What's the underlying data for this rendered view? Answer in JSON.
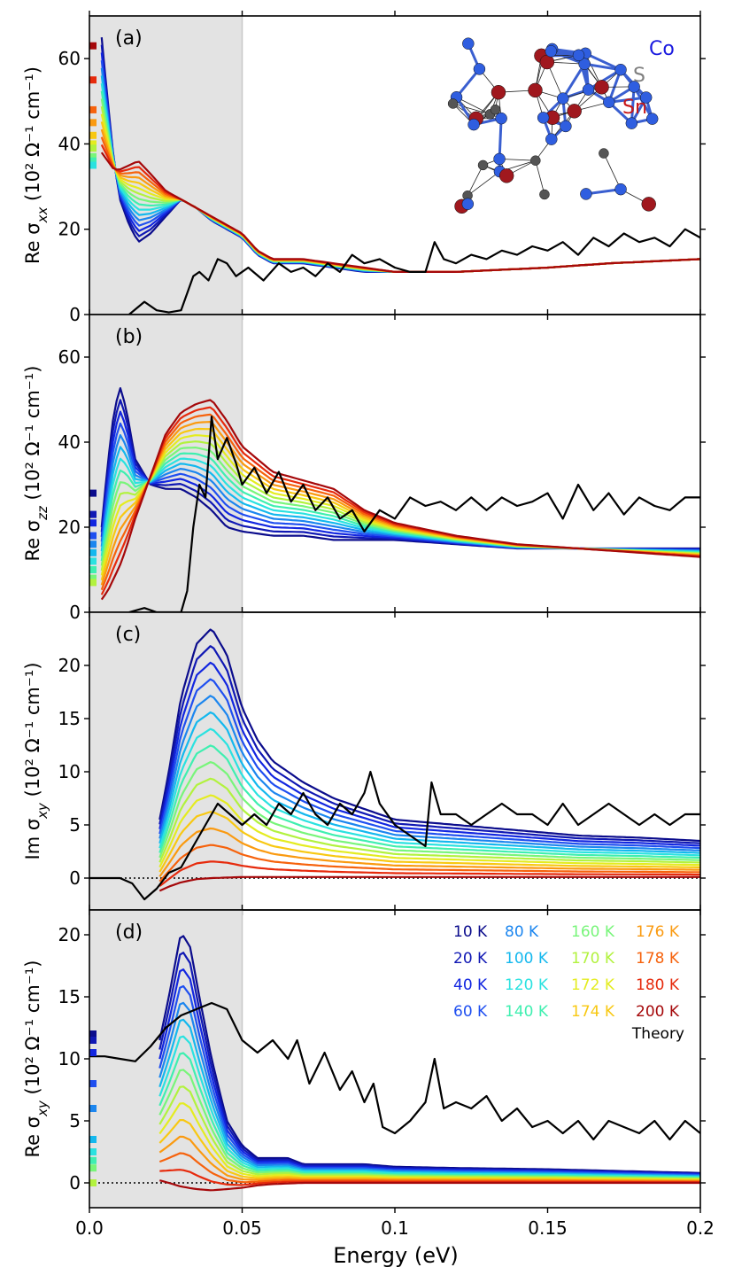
{
  "figure": {
    "xlabel": "Energy (eV)",
    "xlim": [
      0,
      0.2
    ],
    "xticks": [
      0.0,
      0.05,
      0.1,
      0.15,
      0.2
    ],
    "xtick_labels": [
      "0.0",
      "0.05",
      "0.1",
      "0.15",
      "0.2"
    ],
    "shaded_region_ev": [
      0,
      0.05
    ],
    "shade_color": "#e3e3e3",
    "crystal_labels": [
      {
        "text": "Co",
        "color": "#1a1adf"
      },
      {
        "text": "S",
        "color": "#7f7f7f"
      },
      {
        "text": "Sn",
        "color": "#c81818"
      }
    ]
  },
  "legend": {
    "entries": [
      {
        "label": "10 K",
        "color": "#0b0c8c"
      },
      {
        "label": "20 K",
        "color": "#1018b4"
      },
      {
        "label": "40 K",
        "color": "#1226e0"
      },
      {
        "label": "60 K",
        "color": "#1f4ff0"
      },
      {
        "label": "80 K",
        "color": "#1c86ef"
      },
      {
        "label": "100 K",
        "color": "#14b8ee"
      },
      {
        "label": "120 K",
        "color": "#2ae2e0"
      },
      {
        "label": "140 K",
        "color": "#3fefb0"
      },
      {
        "label": "160 K",
        "color": "#78f57a"
      },
      {
        "label": "170 K",
        "color": "#b2f23e"
      },
      {
        "label": "172 K",
        "color": "#e4ec20"
      },
      {
        "label": "174 K",
        "color": "#f8c812"
      },
      {
        "label": "176 K",
        "color": "#fa9a10"
      },
      {
        "label": "178 K",
        "color": "#f6620c"
      },
      {
        "label": "180 K",
        "color": "#e62a0c"
      },
      {
        "label": "200 K",
        "color": "#a5080a"
      }
    ],
    "theory": {
      "label": "Theory",
      "color": "#000000"
    }
  },
  "chart_data": [
    {
      "type": "line",
      "panel": "(a)",
      "ylabel": "Re σxx (10² Ω⁻¹ cm⁻¹)",
      "ylabel_main": "Re σ",
      "ylabel_sub": "xx",
      "ylabel_unit": " (10² Ω⁻¹ cm⁻¹)",
      "ylim": [
        0,
        70
      ],
      "yticks": [
        0,
        20,
        40,
        60
      ],
      "ytick_labels": [
        "0",
        "20",
        "40",
        "60"
      ],
      "dc_markers": [
        63,
        55,
        48,
        45,
        42,
        40,
        39,
        37,
        36,
        35
      ],
      "theory": {
        "x": [
          0.013,
          0.018,
          0.022,
          0.026,
          0.03,
          0.034,
          0.036,
          0.039,
          0.042,
          0.045,
          0.048,
          0.052,
          0.057,
          0.062,
          0.066,
          0.07,
          0.074,
          0.078,
          0.082,
          0.086,
          0.09,
          0.095,
          0.1,
          0.105,
          0.11,
          0.113,
          0.116,
          0.12,
          0.125,
          0.13,
          0.135,
          0.14,
          0.145,
          0.15,
          0.155,
          0.16,
          0.165,
          0.17,
          0.175,
          0.18,
          0.185,
          0.19,
          0.195,
          0.2
        ],
        "y": [
          0,
          3,
          1,
          0.5,
          1,
          9,
          10,
          8,
          13,
          12,
          9,
          11,
          8,
          12,
          10,
          11,
          9,
          12,
          10,
          14,
          12,
          13,
          11,
          10,
          10,
          17,
          13,
          12,
          14,
          13,
          15,
          14,
          16,
          15,
          17,
          14,
          18,
          16,
          19,
          17,
          18,
          16,
          20,
          18
        ]
      },
      "series_hi": {
        "x": [
          0.004,
          0.006,
          0.008,
          0.01,
          0.013,
          0.016,
          0.02,
          0.025,
          0.03,
          0.035,
          0.04,
          0.045,
          0.05,
          0.055,
          0.06,
          0.07,
          0.08,
          0.09,
          0.1,
          0.12,
          0.15,
          0.17,
          0.2
        ],
        "y": [
          65,
          50,
          36,
          27,
          21,
          17,
          19,
          23,
          27,
          25,
          22,
          20,
          18,
          14,
          12,
          12,
          11,
          10,
          10,
          10,
          11,
          12,
          13
        ]
      },
      "series_lo": {
        "x": [
          0.004,
          0.006,
          0.008,
          0.01,
          0.013,
          0.016,
          0.02,
          0.025,
          0.03,
          0.035,
          0.04,
          0.045,
          0.05,
          0.055,
          0.06,
          0.07,
          0.08,
          0.09,
          0.1,
          0.12,
          0.15,
          0.17,
          0.2
        ],
        "y": [
          38,
          36,
          34,
          34,
          35,
          36,
          33,
          29,
          27,
          25,
          23,
          21,
          19,
          15,
          13,
          13,
          12,
          11,
          10,
          10,
          11,
          12,
          13
        ]
      }
    },
    {
      "type": "line",
      "panel": "(b)",
      "ylabel": "Re σzz (10² Ω⁻¹ cm⁻¹)",
      "ylabel_main": "Re σ",
      "ylabel_sub": "zz",
      "ylabel_unit": " (10² Ω⁻¹ cm⁻¹)",
      "ylim": [
        0,
        70
      ],
      "yticks": [
        0,
        20,
        40,
        60
      ],
      "ytick_labels": [
        "0",
        "20",
        "40",
        "60"
      ],
      "dc_markers": [
        28,
        23,
        21,
        18,
        16,
        14,
        12,
        10,
        8,
        7
      ],
      "theory": {
        "x": [
          0.013,
          0.018,
          0.022,
          0.03,
          0.032,
          0.034,
          0.036,
          0.038,
          0.04,
          0.042,
          0.045,
          0.048,
          0.05,
          0.054,
          0.058,
          0.062,
          0.066,
          0.07,
          0.074,
          0.078,
          0.082,
          0.086,
          0.09,
          0.095,
          0.1,
          0.105,
          0.11,
          0.115,
          0.12,
          0.125,
          0.13,
          0.135,
          0.14,
          0.145,
          0.15,
          0.155,
          0.16,
          0.165,
          0.17,
          0.175,
          0.18,
          0.185,
          0.19,
          0.195,
          0.2
        ],
        "y": [
          0,
          1,
          0,
          0,
          5,
          20,
          30,
          27,
          46,
          36,
          41,
          35,
          30,
          34,
          28,
          33,
          26,
          30,
          24,
          27,
          22,
          24,
          19,
          24,
          22,
          27,
          25,
          26,
          24,
          27,
          24,
          27,
          25,
          26,
          28,
          22,
          30,
          24,
          28,
          23,
          27,
          25,
          24,
          27,
          27
        ]
      },
      "series_hi": {
        "x": [
          0.004,
          0.006,
          0.008,
          0.01,
          0.012,
          0.015,
          0.02,
          0.025,
          0.03,
          0.035,
          0.04,
          0.045,
          0.05,
          0.06,
          0.07,
          0.08,
          0.09,
          0.1,
          0.12,
          0.14,
          0.16,
          0.18,
          0.2
        ],
        "y": [
          20,
          35,
          47,
          53,
          48,
          36,
          30,
          29,
          29,
          27,
          24,
          20,
          19,
          18,
          18,
          17,
          17,
          17,
          16,
          15,
          15,
          15,
          15
        ]
      },
      "series_lo": {
        "x": [
          0.004,
          0.006,
          0.008,
          0.01,
          0.012,
          0.015,
          0.02,
          0.025,
          0.03,
          0.035,
          0.04,
          0.045,
          0.05,
          0.06,
          0.07,
          0.08,
          0.09,
          0.1,
          0.12,
          0.14,
          0.16,
          0.18,
          0.2
        ],
        "y": [
          3,
          5,
          8,
          11,
          15,
          22,
          32,
          42,
          47,
          49,
          50,
          45,
          39,
          33,
          31,
          29,
          24,
          21,
          18,
          16,
          15,
          14,
          13
        ]
      }
    },
    {
      "type": "line",
      "panel": "(c)",
      "ylabel": "Im σxy (10² Ω⁻¹ cm⁻¹)",
      "ylabel_main": "Im σ",
      "ylabel_sub": "xy",
      "ylabel_unit": " (10² Ω⁻¹ cm⁻¹)",
      "ylim": [
        -3,
        25
      ],
      "yticks": [
        0,
        5,
        10,
        15,
        20
      ],
      "ytick_labels": [
        "0",
        "5",
        "10",
        "15",
        "20"
      ],
      "dc_markers": [],
      "zero_line": true,
      "theory": {
        "x": [
          0,
          0.01,
          0.014,
          0.018,
          0.022,
          0.026,
          0.03,
          0.034,
          0.038,
          0.042,
          0.046,
          0.05,
          0.054,
          0.058,
          0.062,
          0.066,
          0.07,
          0.074,
          0.078,
          0.082,
          0.086,
          0.09,
          0.092,
          0.095,
          0.1,
          0.105,
          0.11,
          0.112,
          0.115,
          0.12,
          0.125,
          0.13,
          0.135,
          0.14,
          0.145,
          0.15,
          0.155,
          0.16,
          0.165,
          0.17,
          0.175,
          0.18,
          0.185,
          0.19,
          0.195,
          0.2
        ],
        "y": [
          0,
          0,
          -0.5,
          -2,
          -1,
          0.5,
          1,
          3,
          5,
          7,
          6,
          5,
          6,
          5,
          7,
          6,
          8,
          6,
          5,
          7,
          6,
          8,
          10,
          7,
          5,
          4,
          3,
          9,
          6,
          6,
          5,
          6,
          7,
          6,
          6,
          5,
          7,
          5,
          6,
          7,
          6,
          5,
          6,
          5,
          6,
          6
        ]
      },
      "series_hi": {
        "x": [
          0.023,
          0.026,
          0.03,
          0.035,
          0.04,
          0.045,
          0.05,
          0.055,
          0.06,
          0.065,
          0.07,
          0.08,
          0.09,
          0.1,
          0.12,
          0.14,
          0.16,
          0.18,
          0.2
        ],
        "y": [
          5.5,
          10,
          17,
          22,
          23.5,
          21,
          16,
          13,
          11,
          10,
          9,
          7.5,
          6.5,
          5.5,
          5,
          4.5,
          4,
          3.8,
          3.5
        ]
      },
      "series_lo": {
        "x": [
          0.023,
          0.026,
          0.03,
          0.035,
          0.04,
          0.045,
          0.05,
          0.06,
          0.07,
          0.08,
          0.09,
          0.1,
          0.12,
          0.15,
          0.2
        ],
        "y": [
          -1.2,
          -0.8,
          -0.4,
          -0.1,
          0,
          0.05,
          0.1,
          0.1,
          0.1,
          0.1,
          0.1,
          0.1,
          0.1,
          0.1,
          0.1
        ]
      }
    },
    {
      "type": "line",
      "panel": "(d)",
      "ylabel": "Re σxy (10² Ω⁻¹ cm⁻¹)",
      "ylabel_main": "Re σ",
      "ylabel_sub": "xy",
      "ylabel_unit": " (10² Ω⁻¹ cm⁻¹)",
      "ylim": [
        -2,
        22
      ],
      "yticks": [
        0,
        5,
        10,
        15,
        20
      ],
      "ytick_labels": [
        "0",
        "5",
        "10",
        "15",
        "20"
      ],
      "dc_markers": [
        12,
        11.5,
        10.5,
        8,
        6,
        3.5,
        2.5,
        1.8,
        1.2,
        0
      ],
      "zero_line": true,
      "theory": {
        "x": [
          0,
          0.005,
          0.01,
          0.015,
          0.02,
          0.025,
          0.03,
          0.035,
          0.04,
          0.045,
          0.05,
          0.055,
          0.06,
          0.065,
          0.068,
          0.072,
          0.077,
          0.082,
          0.086,
          0.09,
          0.093,
          0.096,
          0.1,
          0.105,
          0.11,
          0.113,
          0.116,
          0.12,
          0.125,
          0.13,
          0.135,
          0.14,
          0.145,
          0.15,
          0.155,
          0.16,
          0.165,
          0.17,
          0.175,
          0.18,
          0.185,
          0.19,
          0.195,
          0.2
        ],
        "y": [
          10.2,
          10.2,
          10,
          9.8,
          11,
          12.5,
          13.5,
          14,
          14.5,
          14,
          11.5,
          10.5,
          11.5,
          10,
          11.5,
          8,
          10.5,
          7.5,
          9,
          6.5,
          8,
          4.5,
          4,
          5,
          6.5,
          10,
          6,
          6.5,
          6,
          7,
          5,
          6,
          4.5,
          5,
          4,
          5,
          3.5,
          5,
          4.5,
          4,
          5,
          3.5,
          5,
          4
        ]
      },
      "series_hi": {
        "x": [
          0.023,
          0.026,
          0.03,
          0.033,
          0.036,
          0.04,
          0.045,
          0.05,
          0.055,
          0.06,
          0.065,
          0.07,
          0.08,
          0.09,
          0.1,
          0.12,
          0.15,
          0.2
        ],
        "y": [
          11.5,
          15,
          20.2,
          19,
          15,
          10,
          5,
          3,
          2,
          2,
          2,
          1.5,
          1.5,
          1.5,
          1.3,
          1.2,
          1.1,
          0.8
        ]
      },
      "series_lo": {
        "x": [
          0.023,
          0.026,
          0.03,
          0.035,
          0.04,
          0.045,
          0.05,
          0.055,
          0.06,
          0.07,
          0.08,
          0.09,
          0.1,
          0.12,
          0.15,
          0.2
        ],
        "y": [
          0.2,
          0,
          -0.3,
          -0.5,
          -0.6,
          -0.5,
          -0.4,
          -0.2,
          -0.1,
          0,
          0,
          0,
          0,
          0,
          0,
          0
        ]
      }
    }
  ]
}
